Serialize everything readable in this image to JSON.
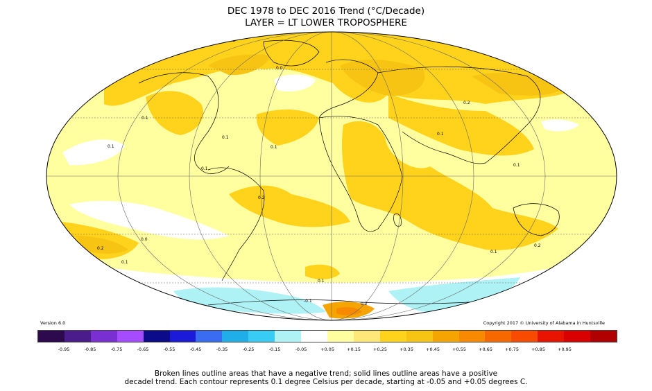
{
  "title": {
    "line1": "DEC 1978 to DEC 2016 Trend (°C/Decade)",
    "line2": "LAYER = LT LOWER TROPOSPHERE"
  },
  "version": "Version 6.0",
  "copyright": "Copyright 2017 © University of Alabama in Huntsville",
  "colorbar": {
    "colors": [
      "#2d0a4e",
      "#4a1c8c",
      "#7a2fd2",
      "#a64cff",
      "#0c0c8a",
      "#1a1ad8",
      "#3a6cf2",
      "#1faee8",
      "#38ccf5",
      "#aef2f5",
      "#ffffff",
      "#ffffa0",
      "#ffe878",
      "#ffd21c",
      "#f8c414",
      "#f6a400",
      "#f78a00",
      "#f86800",
      "#f84a00",
      "#e81400",
      "#d80000",
      "#b00000"
    ],
    "ticks": [
      "-0.95",
      "-0.85",
      "-0.75",
      "-0.65",
      "-0.55",
      "-0.45",
      "-0.35",
      "-0.25",
      "-0.15",
      "-0.05",
      "+0.05",
      "+0.15",
      "+0.25",
      "+0.35",
      "+0.45",
      "+0.55",
      "+0.65",
      "+0.75",
      "+0.85",
      "+0.95"
    ]
  },
  "caption": {
    "line1": "Broken lines outline areas that have a negative trend; solid lines outline areas have a positive",
    "line2": "decadel trend. Each contour represents 0.1 degree Celsius per decade, starting at -0.05 and +0.05 degrees C."
  },
  "map": {
    "contour_labels": [
      "0.1",
      "0.1",
      "0.1",
      "0.1",
      "0.1",
      "0.2",
      "0.2",
      "0.2",
      "0.2",
      "0.1",
      "0.1",
      "0.0",
      "0.0",
      "-0.1",
      "0.1",
      "0.2",
      "0.2",
      "0.1",
      "0.1"
    ]
  }
}
